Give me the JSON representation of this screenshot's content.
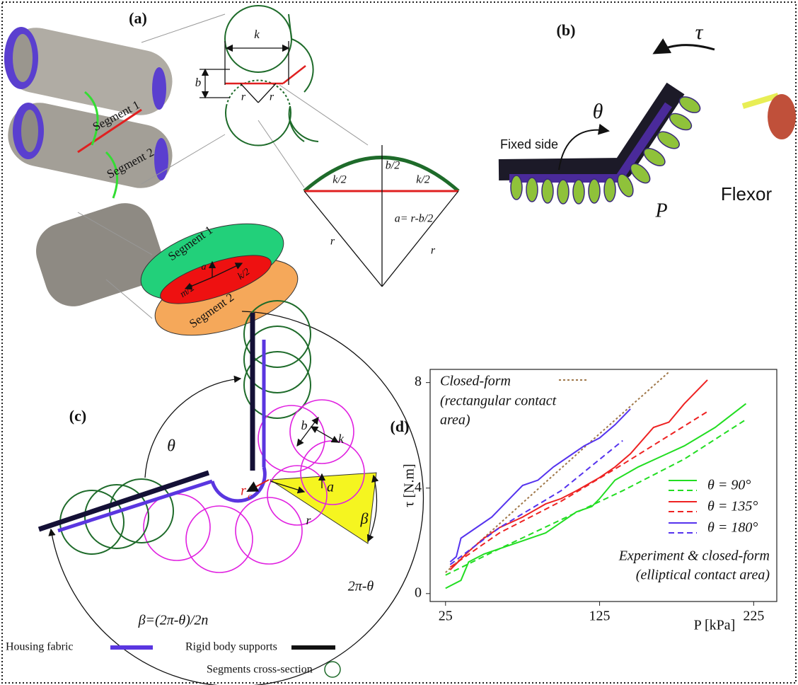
{
  "panel_a": {
    "label": "(a)",
    "photo_segments": [
      "Segment 1",
      "Segment 2"
    ],
    "circle_dims": [
      "k",
      "b",
      "r",
      "r"
    ],
    "sector": [
      "b/2",
      "k/2",
      "k/2",
      "a= r-b/2",
      "r",
      "r"
    ],
    "ellipse": [
      "Segment 1",
      "Segment 2",
      "a",
      "k/2",
      "m/2"
    ]
  },
  "panel_b": {
    "label": "(b)",
    "torque": "τ",
    "angle": "θ",
    "fixed": "Fixed side",
    "pressure": "P",
    "mode": "Flexor"
  },
  "panel_c": {
    "label": "(c)",
    "theta": "θ",
    "b": "b",
    "k": "k",
    "rc": {
      "r": "r",
      "sub": "c"
    },
    "a": "a",
    "r": "r",
    "beta": "β",
    "outer": "2π-θ",
    "formula": "β=(2π-θ)/2n"
  },
  "legend": {
    "fabric": "Housing fabric",
    "rigid": "Rigid body supports",
    "segments": "Segments cross-section"
  },
  "chart_data": {
    "type": "line",
    "label": "(d)",
    "xlabel": "P [kPa]",
    "ylabel": "τ [N.m]",
    "xlim": [
      15,
      240
    ],
    "ylim": [
      -0.3,
      8.5
    ],
    "xticks": [
      25,
      125,
      225
    ],
    "yticks": [
      0,
      4,
      8
    ],
    "rect_note": [
      "(rectangular contact",
      "area)"
    ],
    "ellip_note": [
      "Experiment & closed-form",
      "(elliptical contact area)"
    ],
    "series": [
      {
        "name": "Closed-form",
        "color": "#a0784a",
        "style": "dotted",
        "x": [
          25,
          80,
          120,
          170
        ],
        "values": [
          0.8,
          3.7,
          5.8,
          8.4
        ]
      },
      {
        "name": "θ = 90°",
        "color": "#22dd22",
        "x": [
          25,
          35,
          40,
          50,
          60,
          75,
          90,
          100,
          110,
          120,
          125,
          135,
          150,
          165,
          180,
          200,
          220
        ],
        "values": [
          0.2,
          0.5,
          1.2,
          1.5,
          1.7,
          2.0,
          2.3,
          2.7,
          3.1,
          3.3,
          3.6,
          4.3,
          4.8,
          5.2,
          5.6,
          6.3,
          7.2
        ],
        "closed_form": {
          "x": [
            25,
            60,
            100,
            140,
            180,
            220
          ],
          "values": [
            0.7,
            1.7,
            2.8,
            3.9,
            5.1,
            6.6
          ]
        }
      },
      {
        "name": "θ = 135°",
        "color": "#ee2222",
        "x": [
          28,
          40,
          50,
          60,
          75,
          90,
          100,
          110,
          125,
          135,
          145,
          160,
          170,
          180,
          195
        ],
        "values": [
          0.9,
          1.6,
          2.1,
          2.5,
          2.9,
          3.4,
          3.6,
          3.9,
          4.4,
          4.8,
          5.3,
          6.3,
          6.5,
          7.2,
          8.1
        ],
        "closed_form": {
          "x": [
            28,
            60,
            100,
            140,
            195
          ],
          "values": [
            1.0,
            2.3,
            3.5,
            4.9,
            6.9
          ]
        }
      },
      {
        "name": "θ = 180°",
        "color": "#5533ee",
        "x": [
          28,
          32,
          35,
          45,
          55,
          65,
          75,
          85,
          95,
          105,
          115,
          125,
          135,
          145
        ],
        "values": [
          1.2,
          1.4,
          2.1,
          2.5,
          2.9,
          3.5,
          4.1,
          4.3,
          4.8,
          5.2,
          5.6,
          5.9,
          6.4,
          7.0
        ],
        "closed_form": {
          "x": [
            28,
            60,
            100,
            140
          ],
          "values": [
            1.1,
            2.5,
            3.9,
            5.8
          ]
        }
      }
    ]
  }
}
